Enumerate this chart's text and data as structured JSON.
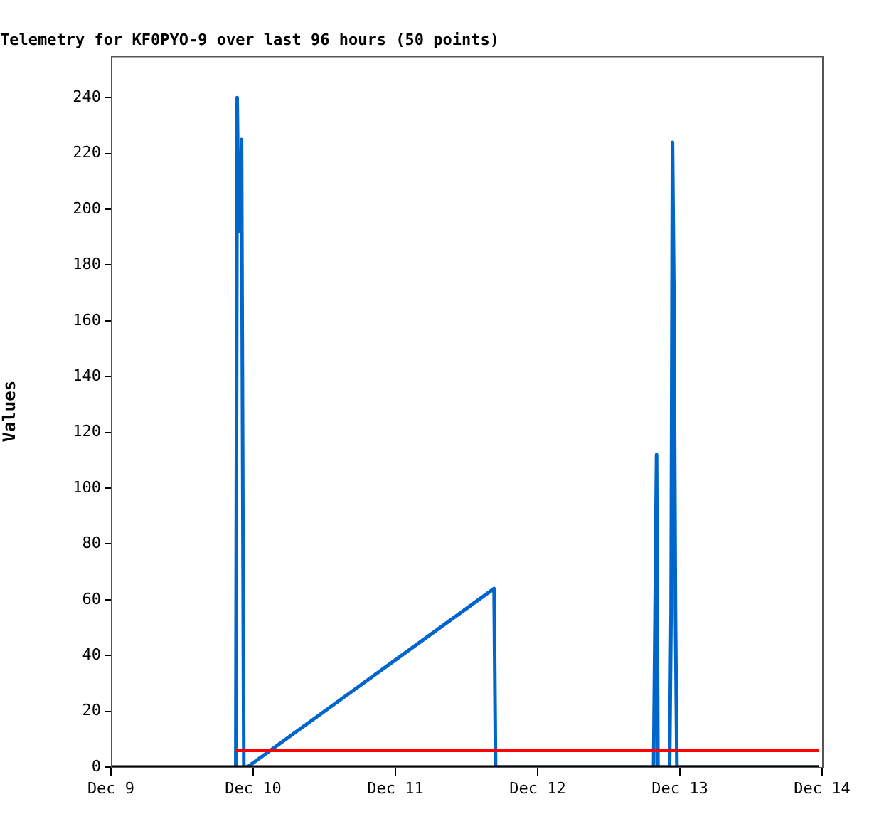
{
  "chart_data": {
    "type": "line",
    "title": "Telemetry for KF0PYO-9 over last 96 hours (50 points)",
    "ylabel": "Values",
    "xlim": [
      "--12-09",
      "--12-14"
    ],
    "xticks": [
      {
        "value": "--12-09",
        "label": "Dec 9"
      },
      {
        "value": "--12-10",
        "label": "Dec 10"
      },
      {
        "value": "--12-11",
        "label": "Dec 11"
      },
      {
        "value": "--12-12",
        "label": "Dec 12"
      },
      {
        "value": "--12-13",
        "label": "Dec 13"
      },
      {
        "value": "--12-14",
        "label": "Dec 14"
      }
    ],
    "ylim": [
      0,
      255
    ],
    "yticks": [
      0,
      20,
      40,
      60,
      80,
      100,
      120,
      140,
      160,
      180,
      200,
      220,
      240
    ],
    "marker": "none",
    "line_style": "solid",
    "legend": false,
    "series": [
      {
        "color": "#000000",
        "x": [
          "--12-09T00:00",
          "--12-13T23:30"
        ],
        "values": [
          0,
          0
        ]
      },
      {
        "color": "#ff0000",
        "x": [
          "--12-09T21:04",
          "--12-13T23:30"
        ],
        "values": [
          6,
          6
        ]
      },
      {
        "color": "#0066cc",
        "x": [
          "--12-09T21:04",
          "--12-09T21:18",
          "--12-09T21:33",
          "--12-09T21:48",
          "--12-09T22:02",
          "--12-09T22:25",
          "--12-09T23:01",
          "--12-11T16:39",
          "--12-11T16:54",
          "--12-12T19:34",
          "--12-12T19:49",
          "--12-12T20:04",
          "--12-12T20:18",
          "--12-12T22:16",
          "--12-12T22:31",
          "--12-12T22:45",
          "--12-12T23:00",
          "--12-12T23:15",
          "--12-12T23:30",
          "--12-13T23:30"
        ],
        "values": [
          0,
          240,
          192,
          192,
          225,
          0,
          0,
          64,
          0,
          0,
          56,
          112,
          0,
          0,
          56,
          224,
          168,
          56,
          0,
          0
        ]
      }
    ]
  }
}
